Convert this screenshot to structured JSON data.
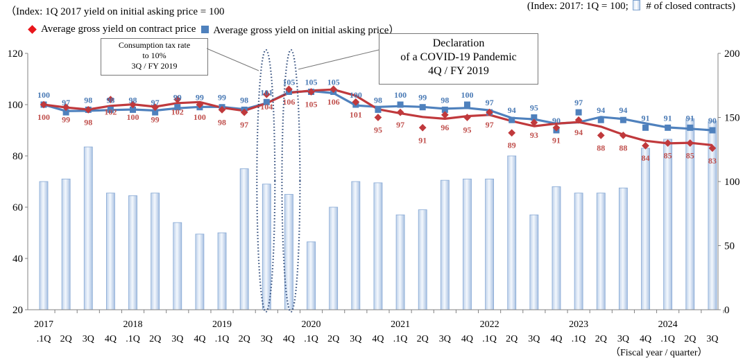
{
  "chart_data": {
    "type": "bar+line",
    "title_left": "（Index: 1Q 2017 yield on initial asking price = 100",
    "title_right_prefix": "(Index: 2017: 1Q = 100;",
    "title_right_suffix": "# of closed contracts)",
    "legend": [
      {
        "name": "Average gross yield on contract price",
        "marker": "diamond",
        "color": "#e8161b"
      },
      {
        "name": "Average gross yield on initial asking price）",
        "marker": "square",
        "color": "#4f81bd"
      }
    ],
    "xlabel": "（Fiscal year / quarter）",
    "quarters": [
      "2017\n.1Q",
      "2Q",
      "3Q",
      "4Q",
      "2018\n.1Q",
      "2Q",
      "3Q",
      "4Q",
      "2019\n.1Q",
      "2Q",
      "3Q",
      "4Q",
      "2020\n.1Q",
      "2Q",
      "3Q",
      "4Q",
      "2021\n.1Q",
      "2Q",
      "3Q",
      "4Q",
      "2022\n.1Q",
      "2Q",
      "3Q",
      "4Q",
      "2023\n.1Q",
      "2Q",
      "3Q",
      "4Q",
      "2024\n.1Q",
      "2Q",
      "3Q"
    ],
    "left_axis": {
      "ylim": [
        20,
        120
      ],
      "ticks": [
        "20",
        "40",
        "60",
        "80",
        "100",
        "120"
      ]
    },
    "right_axis": {
      "ylim": [
        0,
        200
      ],
      "ticks": [
        "0",
        "50",
        "100",
        "150",
        "200"
      ]
    },
    "series": [
      {
        "name": "Average gross yield on initial asking price",
        "axis": "left",
        "color": "#4f81bd",
        "label_color": "#4a7ab5",
        "values": [
          100,
          97,
          98,
          98,
          98,
          97,
          99,
          99,
          99,
          98,
          101,
          105,
          105,
          105,
          100,
          98,
          100,
          99,
          98,
          100,
          97,
          94,
          95,
          90,
          97,
          94,
          94,
          91,
          91,
          91,
          90
        ],
        "labels": [
          "100",
          "97",
          "98",
          "98",
          "98",
          "97",
          "99",
          "99",
          "99",
          "98",
          "101",
          "105",
          "105",
          "105",
          "100",
          "98",
          "100",
          "99",
          "98",
          "100",
          "97",
          "94",
          "95",
          "90",
          "97",
          "94",
          "94",
          "91",
          "91",
          "91",
          "90"
        ],
        "trend": [
          100,
          97.5,
          97.6,
          97.9,
          98.1,
          97.7,
          98.6,
          99.1,
          99.1,
          98.2,
          100.6,
          104.8,
          105.3,
          104.5,
          99.7,
          99.1,
          99.4,
          99.1,
          98.4,
          98.7,
          97.8,
          94.8,
          94.3,
          92.6,
          93.1,
          95.2,
          94.4,
          92.7,
          91.1,
          90.6,
          90.0
        ]
      },
      {
        "name": "Average gross yield on contract price",
        "axis": "left",
        "color": "#e8161b",
        "line_color": "#c0393c",
        "label_color": "#c0504d",
        "values": [
          100,
          99,
          98,
          102,
          100,
          99,
          102,
          100,
          98,
          97,
          104,
          106,
          105,
          106,
          101,
          95,
          97,
          91,
          96,
          95,
          97,
          89,
          93,
          91,
          94,
          88,
          88,
          84,
          85,
          85,
          83
        ],
        "labels": [
          "100",
          "99",
          "98",
          "102",
          "100",
          "99",
          "102",
          "100",
          "98",
          "97",
          "104",
          "106",
          "105",
          "106",
          "101",
          "95",
          "97",
          "91",
          "96",
          "95",
          "97",
          "89",
          "93",
          "91",
          "94",
          "88",
          "88",
          "84",
          "85",
          "85",
          "83"
        ],
        "trend": [
          100,
          98.9,
          98.1,
          99.5,
          100.1,
          99.2,
          100.6,
          101.0,
          98.8,
          97.6,
          100.5,
          104.6,
          105.5,
          105.9,
          103.5,
          98.2,
          96.6,
          95.2,
          94.5,
          95.5,
          96.0,
          93.6,
          91.6,
          92.6,
          93.2,
          91.4,
          88.3,
          85.9,
          84.9,
          85.1,
          84.2
        ]
      },
      {
        "name": "# of closed contracts",
        "axis": "right",
        "type": "bar",
        "values": [
          100,
          102,
          127,
          91,
          89,
          91,
          68,
          59,
          60,
          110,
          98,
          90,
          53,
          80,
          100,
          99,
          74,
          78,
          101,
          102,
          102,
          120,
          74,
          96,
          91,
          91,
          95,
          126,
          133,
          149,
          147
        ]
      }
    ],
    "annotations": [
      {
        "id": "tax",
        "lines": [
          "Consumption tax rate",
          "to 10%",
          "3Q / FY 2019"
        ],
        "quarter_index": 10
      },
      {
        "id": "covid",
        "lines": [
          "Declaration",
          "of a COVID-19 Pandemic",
          "4Q / FY 2019"
        ],
        "quarter_index": 11
      }
    ]
  }
}
